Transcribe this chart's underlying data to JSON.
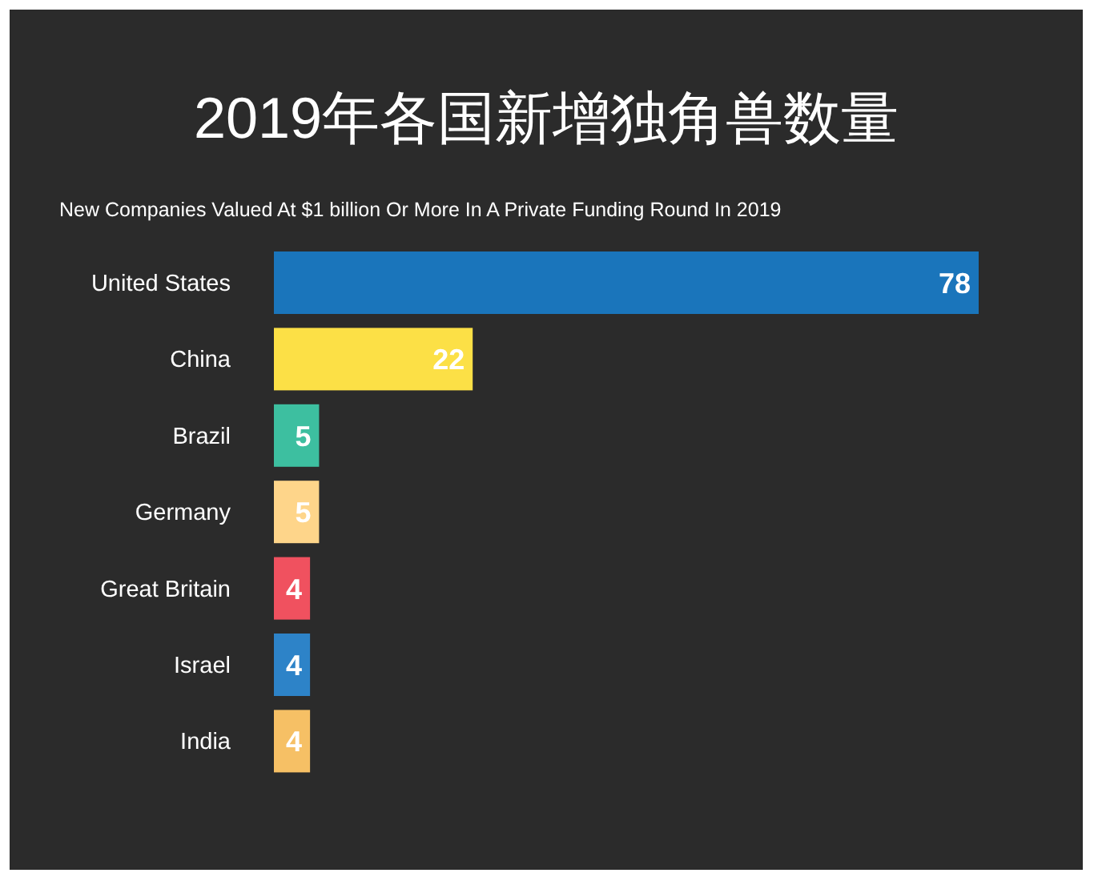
{
  "chart_data": {
    "type": "bar",
    "orientation": "horizontal",
    "title": "2019年各国新增独角兽数量",
    "subtitle": "New Companies Valued At $1 billion Or More In A Private Funding Round In 2019",
    "categories": [
      "United States",
      "China",
      "Brazil",
      "Germany",
      "Great Britain",
      "Israel",
      "India"
    ],
    "values": [
      78,
      22,
      5,
      5,
      4,
      4,
      4
    ],
    "colors": [
      "#1a75bb",
      "#fce046",
      "#3dbfa0",
      "#fed58a",
      "#f0515f",
      "#2d83c8",
      "#f6c065"
    ],
    "data_labels": true
  }
}
